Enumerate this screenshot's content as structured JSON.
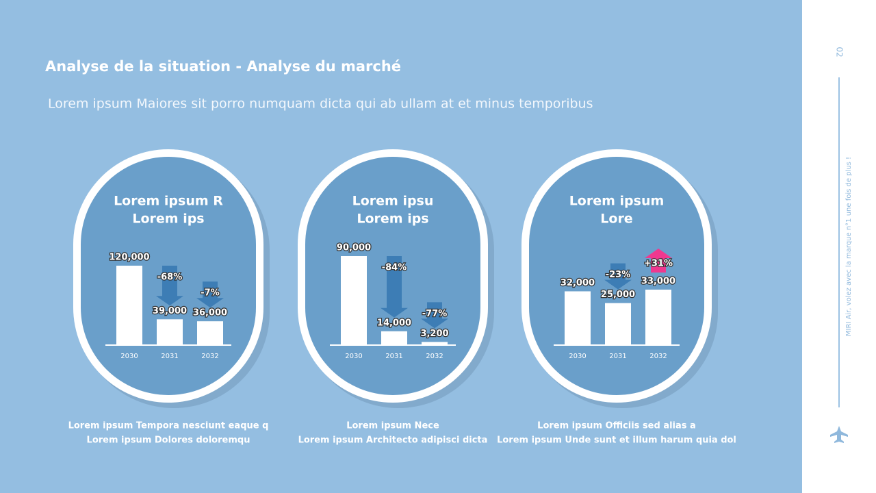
{
  "header": {
    "title": "Analyse de la situation - Analyse du marché",
    "subtitle": "Lorem ipsum Maiores sit porro numquam dicta qui ab ullam at et minus temporibus"
  },
  "sidebar": {
    "page_number": "02",
    "tagline": "MIRI Air, volez avec la marque n°1 une fois de plus !"
  },
  "chart_data": [
    {
      "type": "bar",
      "title": [
        "Lorem ipsum R",
        "Lorem ips"
      ],
      "categories": [
        "2030",
        "2031",
        "2032"
      ],
      "values": [
        120000,
        39000,
        36000
      ],
      "value_labels": [
        "120,000",
        "39,000",
        "36,000"
      ],
      "color": "#ffffff",
      "changes": [
        null,
        "-68%",
        "-7%"
      ],
      "change_directions": [
        null,
        "down",
        "down"
      ],
      "change_colors": [
        null,
        "#3d7db5",
        "#3d7db5"
      ],
      "caption": [
        "Lorem ipsum Tempora nesciunt eaque q",
        "Lorem ipsum Dolores doloremqu"
      ]
    },
    {
      "type": "bar",
      "title": [
        "Lorem ipsu",
        "Lorem ips"
      ],
      "categories": [
        "2030",
        "2031",
        "2032"
      ],
      "values": [
        90000,
        14000,
        3200
      ],
      "value_labels": [
        "90,000",
        "14,000",
        "3,200"
      ],
      "color": "#ffffff",
      "changes": [
        null,
        "-84%",
        "-77%"
      ],
      "change_directions": [
        null,
        "down",
        "down"
      ],
      "change_colors": [
        null,
        "#3d7db5",
        "#3d7db5"
      ],
      "caption": [
        "Lorem ipsum Nece",
        "Lorem ipsum Architecto adipisci dicta"
      ]
    },
    {
      "type": "bar",
      "title": [
        "Lorem ipsum",
        "Lore"
      ],
      "categories": [
        "2030",
        "2031",
        "2032"
      ],
      "values": [
        32000,
        25000,
        33000
      ],
      "value_labels": [
        "32,000",
        "25,000",
        "33,000"
      ],
      "color": "#ffffff",
      "changes": [
        null,
        "-23%",
        "+31%"
      ],
      "change_directions": [
        null,
        "down",
        "up"
      ],
      "change_colors": [
        null,
        "#3d7db5",
        "#f0388f"
      ],
      "caption": [
        "Lorem ipsum Officiis sed alias a",
        "Lorem ipsum Unde sunt et illum harum quia dol"
      ]
    }
  ]
}
